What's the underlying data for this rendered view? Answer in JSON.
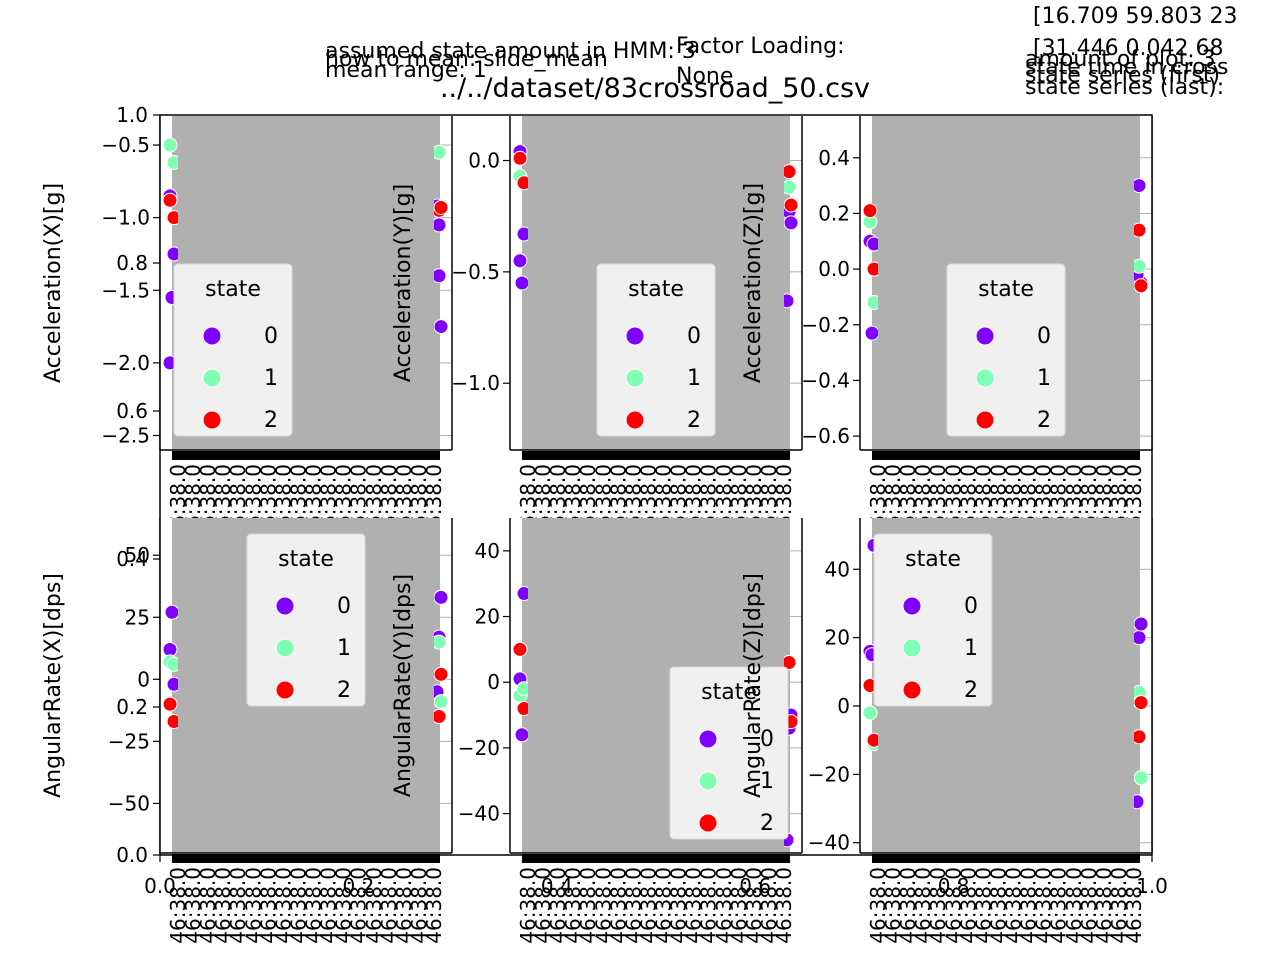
{
  "figure": {
    "title": "../../dataset/83crossroad_50.csv",
    "notes": [
      "assumed state amount in HMM: 3",
      "how to mean: slide_mean",
      "mean range: 1",
      "Factor Loading:",
      "None",
      "[16.709 59.803 23",
      "[31.446  0.042 68",
      "amount of plot: 3",
      "state time in cross",
      "state series (first)",
      "state series (last):"
    ]
  },
  "colors": {
    "state_0": "#8000ff",
    "state_1": "#80ffb4",
    "state_2": "#ff0000",
    "axes_bg": "#b0b0b0",
    "legend_bg": "#f0f0f0"
  },
  "legend": {
    "title": "state",
    "entries": [
      "0",
      "1",
      "2"
    ]
  },
  "chart_data": [
    {
      "type": "scatter",
      "ylabel": "Acceleration(X)[g]",
      "ylim": [
        -2.6,
        -0.3
      ],
      "yticks": [
        "−0.5",
        "−1.0",
        "−1.5",
        "−2.0",
        "−2.5"
      ],
      "legend_position": "lower-left",
      "series": [
        {
          "name": "0",
          "values": [
            -0.85,
            -1.05,
            -1.25,
            -1.75,
            -1.55,
            -0.92,
            -2.0,
            -1.4
          ]
        },
        {
          "name": "1",
          "values": [
            -0.5,
            -0.55,
            -0.62
          ]
        },
        {
          "name": "2",
          "values": [
            -0.88,
            -0.95,
            -1.0,
            -0.93
          ]
        }
      ]
    },
    {
      "type": "scatter",
      "ylabel": "Acceleration(Y)[g]",
      "ylim": [
        -1.3,
        0.2
      ],
      "yticks": [
        "0.0",
        "−0.5",
        "−1.0"
      ],
      "legend_position": "lower-right",
      "series": [
        {
          "name": "0",
          "values": [
            0.04,
            -0.23,
            -0.33,
            -0.28,
            -0.55,
            -0.63,
            -0.45
          ]
        },
        {
          "name": "1",
          "values": [
            -0.07,
            -0.12
          ]
        },
        {
          "name": "2",
          "values": [
            0.01,
            -0.05,
            -0.1,
            -0.2
          ]
        }
      ]
    },
    {
      "type": "scatter",
      "ylabel": "Acceleration(Z)[g]",
      "ylim": [
        -0.65,
        0.55
      ],
      "yticks": [
        "0.4",
        "0.2",
        "0.0",
        "−0.2",
        "−0.4",
        "−0.6"
      ],
      "legend_position": "lower-right",
      "series": [
        {
          "name": "0",
          "values": [
            0.1,
            0.3,
            0.09,
            -0.05,
            -0.23,
            -0.02
          ]
        },
        {
          "name": "1",
          "values": [
            0.17,
            0.01,
            -0.12
          ]
        },
        {
          "name": "2",
          "values": [
            0.21,
            0.14,
            0.0,
            -0.06
          ]
        }
      ]
    },
    {
      "type": "scatter",
      "ylabel": "AngularRate(X)[dps]",
      "ylim": [
        -70,
        65
      ],
      "yticks": [
        "50",
        "25",
        "0",
        "−25",
        "−50"
      ],
      "legend_position": "upper-center",
      "series": [
        {
          "name": "0",
          "values": [
            12,
            17,
            -2,
            33,
            27,
            -5
          ]
        },
        {
          "name": "1",
          "values": [
            7,
            15,
            6,
            -9
          ]
        },
        {
          "name": "2",
          "values": [
            -10,
            -15,
            -17,
            2
          ]
        }
      ]
    },
    {
      "type": "scatter",
      "ylabel": "AngularRate(Y)[dps]",
      "ylim": [
        -52,
        50
      ],
      "yticks": [
        "40",
        "20",
        "0",
        "−20",
        "−40"
      ],
      "legend_position": "lower-right",
      "series": [
        {
          "name": "0",
          "values": [
            1,
            -14,
            27,
            -10,
            -16,
            -48
          ]
        },
        {
          "name": "1",
          "values": [
            -4,
            6,
            -2
          ]
        },
        {
          "name": "2",
          "values": [
            10,
            6,
            -8,
            -12
          ]
        }
      ]
    },
    {
      "type": "scatter",
      "ylabel": "AngularRate(Z)[dps]",
      "ylim": [
        -43,
        55
      ],
      "yticks": [
        "40",
        "20",
        "0",
        "−20",
        "−40"
      ],
      "legend_position": "upper-left",
      "series": [
        {
          "name": "0",
          "values": [
            16,
            20,
            47,
            24,
            15,
            -28
          ]
        },
        {
          "name": "1",
          "values": [
            -2,
            4,
            -11,
            -21
          ]
        },
        {
          "name": "2",
          "values": [
            6,
            -9,
            -10,
            1
          ]
        }
      ]
    }
  ],
  "background_axes": {
    "xticks": [
      "0.0",
      "0.2",
      "0.4",
      "0.6",
      "0.8",
      "1.0"
    ],
    "yticks": [
      "1.0",
      "0.8",
      "0.6",
      "0.4",
      "0.2",
      "0.0"
    ]
  }
}
